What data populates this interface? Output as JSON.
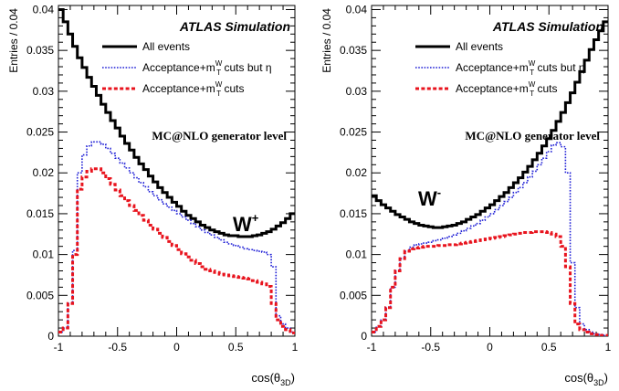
{
  "chart_data": [
    {
      "type": "line",
      "title": "",
      "collaboration_label": "ATLAS Simulation",
      "level_label": "MC@NLO generator level",
      "boson_label": "W",
      "boson_charge": "+",
      "xlabel": "cos(θ",
      "xlabel_sub": "3D",
      "xlabel_close": ")",
      "ylabel": "Entries / 0.04",
      "xlim": [
        -1,
        1
      ],
      "ylim": [
        0,
        0.0405
      ],
      "xticks": [
        "-1",
        "-0.5",
        "0",
        "0.5",
        "1"
      ],
      "yticks": [
        "0",
        "0.005",
        "0.01",
        "0.015",
        "0.02",
        "0.025",
        "0.03",
        "0.035",
        "0.04"
      ],
      "bin_width": 0.04,
      "legend_position": "top-right",
      "series": [
        {
          "name": "All events",
          "style": "solid",
          "color": "#000000",
          "values": [
            0.04,
            0.0385,
            0.037,
            0.0355,
            0.0341,
            0.0329,
            0.0317,
            0.0306,
            0.0295,
            0.0284,
            0.0274,
            0.0264,
            0.0255,
            0.0245,
            0.0236,
            0.0228,
            0.0219,
            0.0211,
            0.0204,
            0.0196,
            0.0189,
            0.0182,
            0.0176,
            0.017,
            0.0164,
            0.0159,
            0.0153,
            0.0148,
            0.0144,
            0.014,
            0.0136,
            0.0133,
            0.013,
            0.0128,
            0.0126,
            0.0124,
            0.0123,
            0.0123,
            0.0122,
            0.0122,
            0.0122,
            0.0123,
            0.0124,
            0.0126,
            0.0128,
            0.0131,
            0.0135,
            0.0139,
            0.0144,
            0.015
          ]
        },
        {
          "name": "Acceptance+m",
          "name_sub": "T",
          "name_sup": "W",
          "name_tail": " cuts but η",
          "style": "dotted",
          "color": "#1f1fd6",
          "values": [
            0.0005,
            0.001,
            0.004,
            0.0105,
            0.02,
            0.0222,
            0.0233,
            0.0238,
            0.0238,
            0.0235,
            0.023,
            0.0224,
            0.0218,
            0.0212,
            0.0206,
            0.02,
            0.0194,
            0.0188,
            0.0183,
            0.0177,
            0.0172,
            0.0167,
            0.0162,
            0.0158,
            0.0154,
            0.015,
            0.0146,
            0.0142,
            0.0138,
            0.0134,
            0.013,
            0.0127,
            0.0124,
            0.0121,
            0.0118,
            0.0115,
            0.0113,
            0.0111,
            0.0109,
            0.0107,
            0.0106,
            0.0105,
            0.0104,
            0.0103,
            0.01,
            0.0085,
            0.0025,
            0.0015,
            0.001,
            0.0005
          ]
        },
        {
          "name": "Acceptance+m",
          "name_sub": "T",
          "name_sup": "W",
          "name_tail": " cuts",
          "style": "dashed",
          "color": "#e8141e",
          "values": [
            0.0005,
            0.001,
            0.004,
            0.01,
            0.018,
            0.0195,
            0.0202,
            0.0205,
            0.0205,
            0.02,
            0.0193,
            0.0186,
            0.0179,
            0.0172,
            0.0166,
            0.016,
            0.0154,
            0.0148,
            0.0142,
            0.0136,
            0.0131,
            0.0126,
            0.0121,
            0.0116,
            0.0111,
            0.0106,
            0.0101,
            0.0097,
            0.0093,
            0.0089,
            0.0085,
            0.0082,
            0.008,
            0.0078,
            0.0076,
            0.0075,
            0.0074,
            0.0073,
            0.0072,
            0.0071,
            0.007,
            0.0068,
            0.0066,
            0.0064,
            0.0061,
            0.004,
            0.002,
            0.0012,
            0.0008,
            0.0004
          ]
        }
      ]
    },
    {
      "type": "line",
      "title": "",
      "collaboration_label": "ATLAS Simulation",
      "level_label": "MC@NLO generator level",
      "boson_label": "W",
      "boson_charge": "-",
      "xlabel": "cos(θ",
      "xlabel_sub": "3D",
      "xlabel_close": ")",
      "ylabel": "Entries / 0.04",
      "xlim": [
        -1,
        1
      ],
      "ylim": [
        0,
        0.0405
      ],
      "xticks": [
        "-1",
        "-0.5",
        "0",
        "0.5",
        "1"
      ],
      "yticks": [
        "0",
        "0.005",
        "0.01",
        "0.015",
        "0.02",
        "0.025",
        "0.03",
        "0.035",
        "0.04"
      ],
      "bin_width": 0.04,
      "legend_position": "top-right",
      "series": [
        {
          "name": "All events",
          "style": "solid",
          "color": "#000000",
          "values": [
            0.0172,
            0.0166,
            0.0161,
            0.0157,
            0.0153,
            0.0149,
            0.0146,
            0.0143,
            0.014,
            0.0138,
            0.0136,
            0.0135,
            0.0134,
            0.0133,
            0.0133,
            0.0134,
            0.0135,
            0.0136,
            0.0138,
            0.014,
            0.0143,
            0.0146,
            0.0149,
            0.0153,
            0.0157,
            0.0161,
            0.0166,
            0.0171,
            0.0176,
            0.0182,
            0.0188,
            0.0194,
            0.0201,
            0.0208,
            0.0216,
            0.0224,
            0.0233,
            0.0242,
            0.0252,
            0.0263,
            0.0274,
            0.0286,
            0.0298,
            0.0311,
            0.0324,
            0.0338,
            0.0351,
            0.0363,
            0.0374,
            0.0385
          ]
        },
        {
          "name": "Acceptance+m",
          "name_sub": "T",
          "name_sup": "W",
          "name_tail": " cuts but η",
          "style": "dotted",
          "color": "#1f1fd6",
          "values": [
            0.0005,
            0.0012,
            0.002,
            0.0035,
            0.006,
            0.008,
            0.0095,
            0.0104,
            0.0109,
            0.0112,
            0.0113,
            0.0114,
            0.0115,
            0.0117,
            0.0118,
            0.012,
            0.0122,
            0.0124,
            0.0126,
            0.0129,
            0.0132,
            0.0135,
            0.0138,
            0.0142,
            0.0146,
            0.015,
            0.0155,
            0.016,
            0.0165,
            0.017,
            0.0176,
            0.0182,
            0.0188,
            0.0195,
            0.0202,
            0.021,
            0.0218,
            0.0226,
            0.0234,
            0.0237,
            0.0232,
            0.02,
            0.009,
            0.0035,
            0.0015,
            0.0008,
            0.0005,
            0.0003,
            0.0002,
            0.0001
          ]
        },
        {
          "name": "Acceptance+m",
          "name_sub": "T",
          "name_sup": "W",
          "name_tail": " cuts",
          "style": "dashed",
          "color": "#e8141e",
          "values": [
            0.0005,
            0.0012,
            0.002,
            0.0035,
            0.006,
            0.008,
            0.0095,
            0.0104,
            0.0107,
            0.0108,
            0.0109,
            0.011,
            0.011,
            0.011,
            0.0111,
            0.0111,
            0.0112,
            0.0112,
            0.0113,
            0.0114,
            0.0115,
            0.0116,
            0.0117,
            0.0118,
            0.0119,
            0.012,
            0.0121,
            0.0122,
            0.0123,
            0.0124,
            0.0125,
            0.0126,
            0.0127,
            0.0127,
            0.0128,
            0.0128,
            0.0128,
            0.0127,
            0.0125,
            0.0122,
            0.011,
            0.0085,
            0.004,
            0.0015,
            0.0008,
            0.0005,
            0.0003,
            0.0002,
            0.0001,
            0.0001
          ]
        }
      ]
    }
  ]
}
